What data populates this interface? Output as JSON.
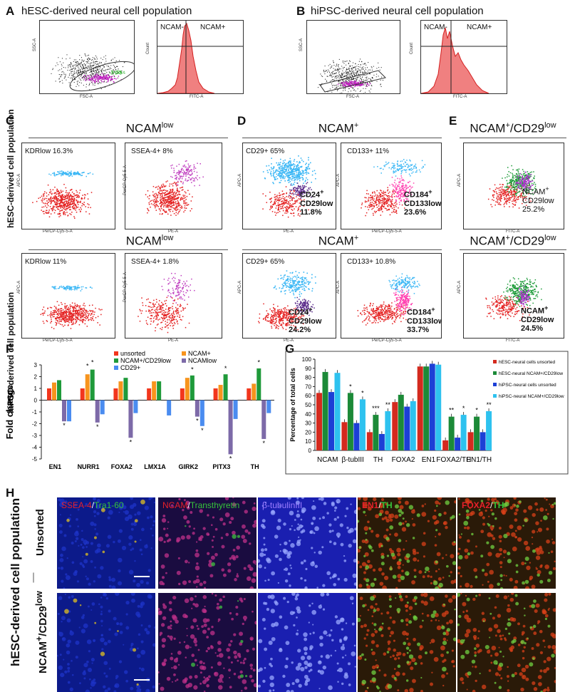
{
  "panel_letters": {
    "A": "A",
    "B": "B",
    "C": "C",
    "D": "D",
    "E": "E",
    "F": "F",
    "G": "G",
    "H": "H"
  },
  "titles": {
    "A": "hESC-derived neural cell population",
    "B": "hiPSC-derived neural cell population"
  },
  "flow_A": {
    "scatter_y": "SSC-A",
    "scatter_x": "FSC-A",
    "hist_y": "Count",
    "hist_x": "FITC-A",
    "neg": "NCAM-",
    "pos": "NCAM+"
  },
  "flow_B": {
    "scatter_y": "SSC-A",
    "scatter_x": "FSC-A",
    "hist_y": "Count",
    "hist_x": "FITC-A",
    "neg": "NCAM-",
    "pos": "NCAM+"
  },
  "row_labels": {
    "hesc": "hESC-derived cell population",
    "hipsc": "hiPSC-derived cell population",
    "h_main": "hESC-derived cell population",
    "h_unsorted": "Unsorted",
    "h_sorted_main": "NCAM",
    "h_sorted_sup": "+",
    "h_sorted_tail": "/CD29",
    "h_sorted_sup2": "low"
  },
  "headers": {
    "ncam_low_main": "NCAM",
    "ncam_low_sup": "low",
    "ncam_pos_main": "NCAM",
    "ncam_pos_sup": "+",
    "e_main": "NCAM",
    "e_sup": "+",
    "e_tail": "/CD29",
    "e_sup2": "low"
  },
  "cd_panels": {
    "c1_top": {
      "label": "KDRlow 16.3%",
      "y": "APC-A",
      "x": "PerCP-Cy5-5-A"
    },
    "c2_top": {
      "label": "SSEA-4+ 8%",
      "y": "PerCP-Cy5-5-A",
      "x": "PE-A"
    },
    "d1_top": {
      "label": "CD29+ 65%",
      "gate1": "CD24",
      "gate1_sup": "+",
      "gate2": "CD29low",
      "gate3": "11.8%",
      "y": "APC-A",
      "x": "PE-A"
    },
    "d2_top": {
      "label": "CD133+ 11%",
      "gate1": "CD184",
      "gate1_sup": "+",
      "gate2": "CD133low",
      "gate3": "23.6%",
      "y": "APC-A",
      "x": "PerCP-Cy5-5-A"
    },
    "e_top": {
      "gate1": "NCAM",
      "gate1_sup": "+",
      "gate2": "CD29low",
      "gate3": "25.2%",
      "y": "APC-A",
      "x": "FITC-A"
    },
    "c1_bot": {
      "label": "KDRlow 11%",
      "y": "APC-A",
      "x": "PerCP-Cy5-5-A"
    },
    "c2_bot": {
      "label": "SSEA-4+ 1.8%",
      "y": "PerCP-Cy5-5-A",
      "x": "PE-A"
    },
    "d1_bot": {
      "label": "CD29+ 65%",
      "gate1": "CD24",
      "gate1_sup": "+",
      "gate2": "CD29low",
      "gate3": "24.2%",
      "y": "APC-A",
      "x": "PE-A"
    },
    "d2_bot": {
      "label": "CD133+ 10.8%",
      "gate1": "CD184",
      "gate1_sup": "+",
      "gate2": "CD133low",
      "gate3": "33.7%",
      "y": "APC-A",
      "x": "PerCP-Cy5-5-A"
    },
    "e_bot": {
      "gate1": "NCAM",
      "gate1_sup": "+",
      "gate2": "CD29low",
      "gate3": "24.5%",
      "y": "APC-A",
      "x": "FITC-A"
    }
  },
  "micro_labels": {
    "m1": [
      {
        "t": "SSEA-4",
        "c": "#e8202a"
      },
      {
        "t": "/",
        "c": "#ffffff"
      },
      {
        "t": "Tra1-60",
        "c": "#36c43a"
      }
    ],
    "m2": [
      {
        "t": "NCAM",
        "c": "#e8202a"
      },
      {
        "t": "/",
        "c": "#ffffff"
      },
      {
        "t": "Transthyretin",
        "c": "#36c43a"
      }
    ],
    "m3": [
      {
        "t": "β-tubulinIII",
        "c": "#9b7bff"
      }
    ],
    "m4": [
      {
        "t": "EN1",
        "c": "#e8202a",
        "b": true
      },
      {
        "t": "/",
        "c": "#ffffff"
      },
      {
        "t": "TH",
        "c": "#36c43a",
        "b": true
      }
    ],
    "m5": [
      {
        "t": "FOXA2",
        "c": "#e8202a",
        "b": true
      },
      {
        "t": "/",
        "c": "#ffffff"
      },
      {
        "t": "TH",
        "c": "#36c43a",
        "b": true
      }
    ]
  },
  "colors": {
    "red": "#f2361d",
    "orange": "#f7941d",
    "green": "#1f9a3a",
    "blue": "#4a8cf0",
    "purple": "#7d6aa8",
    "g_red": "#d42a1e",
    "g_green": "#1c8a38",
    "g_blue": "#1c3fd6",
    "g_cyan": "#2ec2ef"
  },
  "chart_data": [
    {
      "type": "bar",
      "ylabel": "Fold change",
      "ylim": [
        -5,
        3
      ],
      "yticks": [
        "3",
        "2",
        "1",
        "0",
        "-1",
        "-2",
        "-3",
        "-4",
        "-5"
      ],
      "categories": [
        "EN1",
        "NURR1",
        "FOXA2",
        "LMX1A",
        "GIRK2",
        "PITX3",
        "TH"
      ],
      "legend": [
        {
          "name": "unsorted",
          "color": "#f2361d"
        },
        {
          "name": "NCAM+",
          "color": "#f7941d"
        },
        {
          "name": "NCAM+/CD29low",
          "color": "#1f9a3a"
        },
        {
          "name": "NCAMlow",
          "color": "#7d6aa8"
        },
        {
          "name": "CD29+",
          "color": "#4a8cf0"
        }
      ],
      "series": [
        {
          "name": "unsorted",
          "values": [
            1,
            1,
            1,
            1,
            1,
            1,
            1
          ],
          "color": "#f2361d"
        },
        {
          "name": "NCAM+",
          "values": [
            1.5,
            2.2,
            1.6,
            1.6,
            1.9,
            1.3,
            1.4
          ],
          "color": "#f7941d"
        },
        {
          "name": "NCAM+/CD29low",
          "values": [
            1.7,
            2.6,
            1.9,
            1.6,
            2.1,
            2.2,
            2.7
          ],
          "color": "#1f9a3a"
        },
        {
          "name": "NCAMlow",
          "values": [
            -1.8,
            -1.9,
            -3.2,
            0,
            -1.4,
            -4.6,
            -3.3
          ],
          "color": "#7d6aa8"
        },
        {
          "name": "CD29+",
          "values": [
            -1.8,
            -1.2,
            -1.1,
            -1.3,
            -2.2,
            -1.6,
            -1.1
          ],
          "color": "#4a8cf0"
        }
      ],
      "stars": [
        "*",
        "*",
        "*",
        "*",
        "*",
        "*",
        "*",
        "*",
        "*",
        "*",
        "*",
        "*"
      ]
    },
    {
      "type": "bar",
      "ylabel": "Percentage of total cells",
      "ylim": [
        0,
        100
      ],
      "yticks": [
        "0",
        "10",
        "20",
        "30",
        "40",
        "50",
        "60",
        "70",
        "80",
        "90",
        "100"
      ],
      "categories": [
        "NCAM",
        "β-tubIII",
        "TH",
        "FOXA2",
        "EN1",
        "FOXA2/TH",
        "EN1/TH"
      ],
      "legend": [
        {
          "name": "hESC-neural cells unsorted",
          "color": "#d42a1e"
        },
        {
          "name": "hESC-neural NCAM+/CD29low",
          "color": "#1c8a38"
        },
        {
          "name": "hiPSC-neural cells unsorted",
          "color": "#1c3fd6"
        },
        {
          "name": "hiPSC-neural NCAM+/CD29low",
          "color": "#2ec2ef"
        }
      ],
      "series": [
        {
          "name": "hESC-neural cells unsorted",
          "values": [
            63,
            31,
            20,
            53,
            92,
            11,
            20
          ],
          "color": "#d42a1e"
        },
        {
          "name": "hESC-neural NCAM+/CD29low",
          "values": [
            86,
            63,
            39,
            61,
            92,
            37,
            37
          ],
          "color": "#1c8a38"
        },
        {
          "name": "hiPSC-neural cells unsorted",
          "values": [
            64,
            30,
            18,
            48,
            95,
            14,
            20
          ],
          "color": "#1c3fd6"
        },
        {
          "name": "hiPSC-neural NCAM+/CD29low",
          "values": [
            85,
            56,
            43,
            54,
            94,
            39,
            43
          ],
          "color": "#2ec2ef"
        }
      ],
      "stars": [
        "*",
        "*",
        "***",
        "**",
        "**",
        "*",
        "*",
        "**"
      ]
    }
  ]
}
